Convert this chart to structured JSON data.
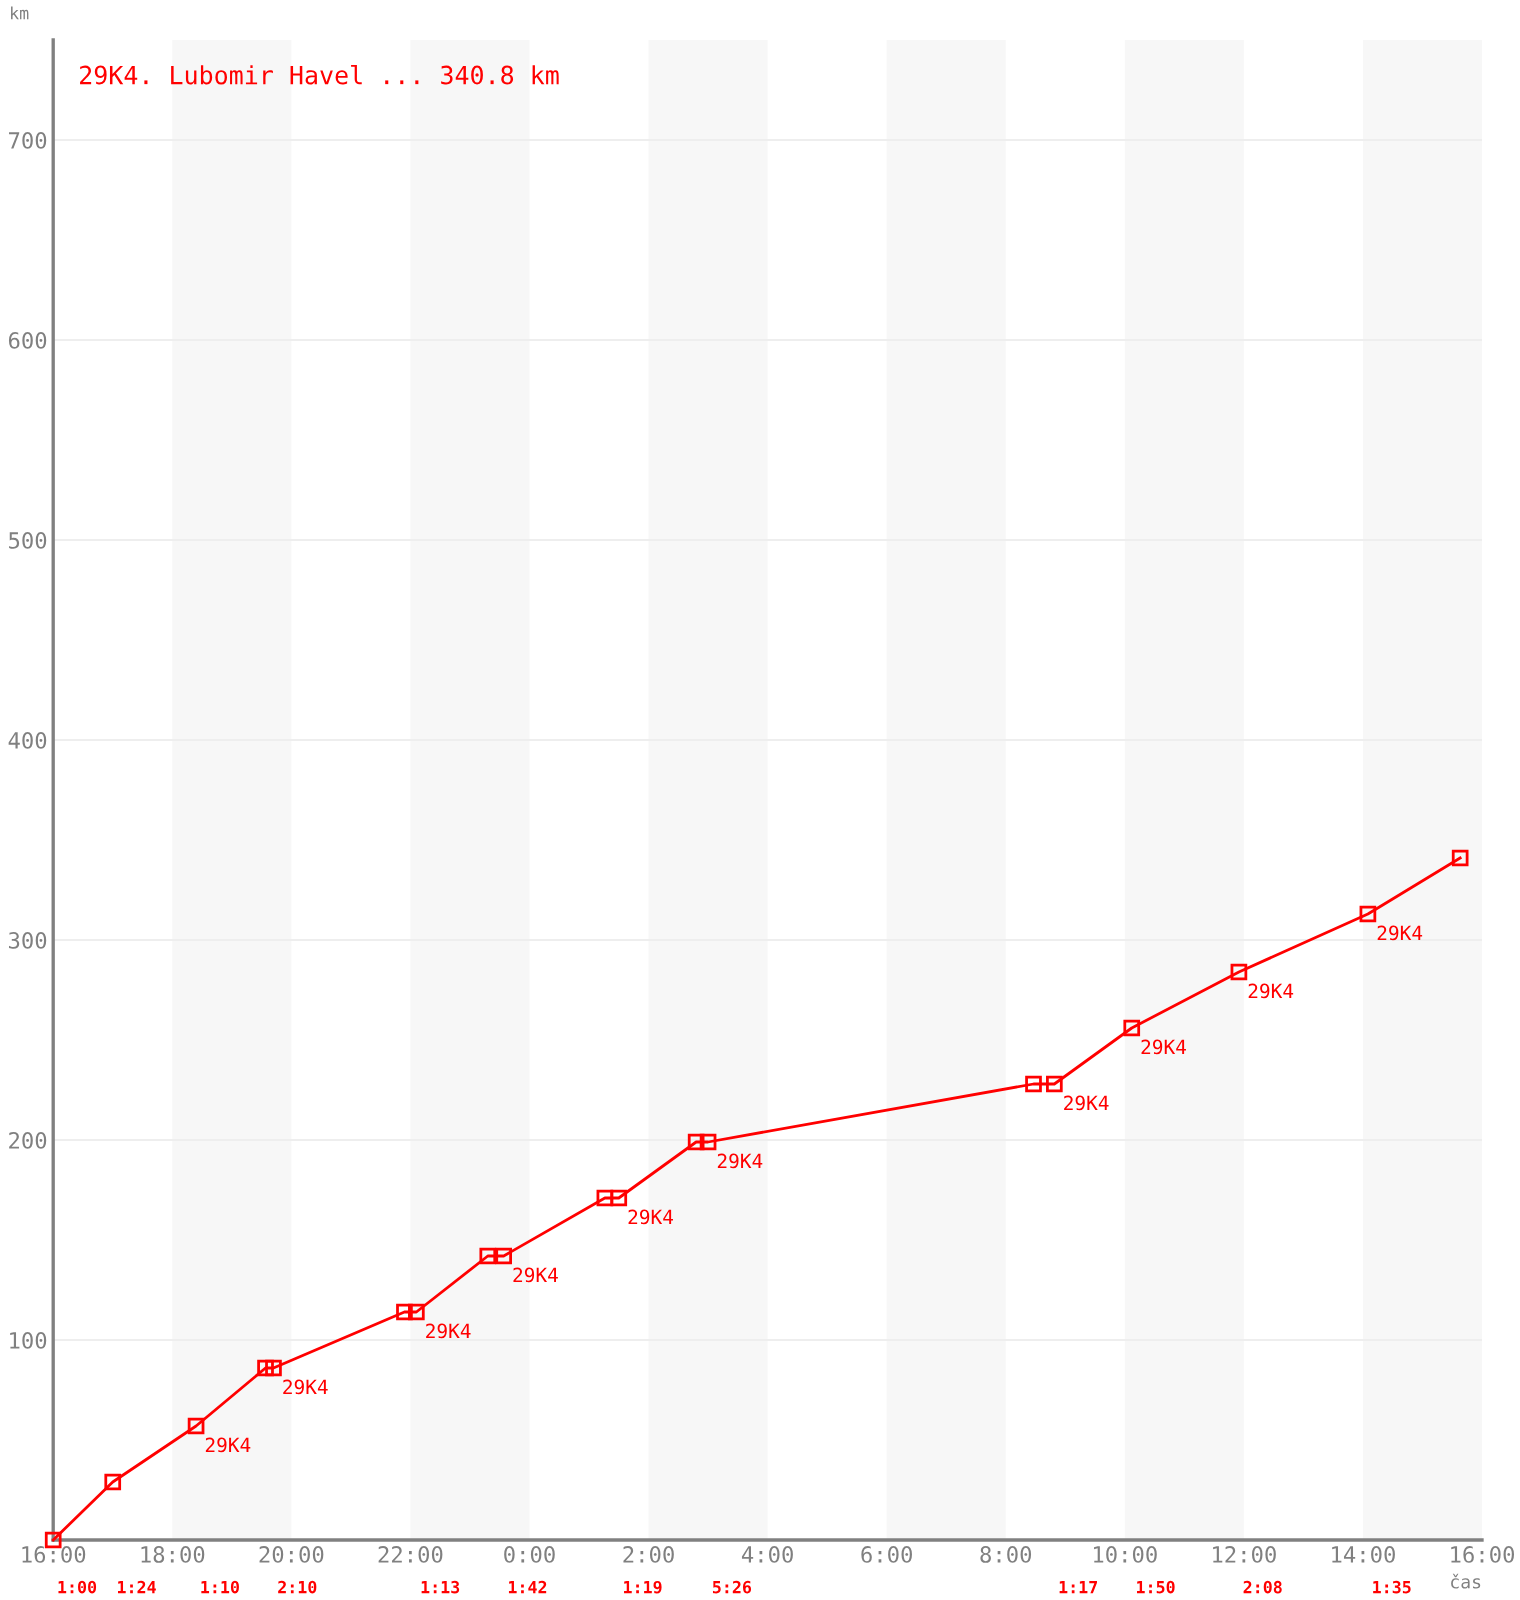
{
  "chart_data": {
    "type": "line",
    "xlabel": "čas",
    "ylabel": "km",
    "xlim": [
      "2000-01-01T16:00",
      "2000-01-02T16:00"
    ],
    "ylim": [
      0,
      750
    ],
    "xticks": [
      {
        "value": "2000-01-01T16:00",
        "label": "16:00"
      },
      {
        "value": "2000-01-01T18:00",
        "label": "18:00"
      },
      {
        "value": "2000-01-01T20:00",
        "label": "20:00"
      },
      {
        "value": "2000-01-01T22:00",
        "label": "22:00"
      },
      {
        "value": "2000-01-02T00:00",
        "label": "0:00"
      },
      {
        "value": "2000-01-02T02:00",
        "label": "2:00"
      },
      {
        "value": "2000-01-02T04:00",
        "label": "4:00"
      },
      {
        "value": "2000-01-02T06:00",
        "label": "6:00"
      },
      {
        "value": "2000-01-02T08:00",
        "label": "8:00"
      },
      {
        "value": "2000-01-02T10:00",
        "label": "10:00"
      },
      {
        "value": "2000-01-02T12:00",
        "label": "12:00"
      },
      {
        "value": "2000-01-02T14:00",
        "label": "14:00"
      },
      {
        "value": "2000-01-02T16:00",
        "label": "16:00"
      }
    ],
    "yticks": [
      100,
      200,
      300,
      400,
      500,
      600,
      700
    ],
    "grid": "y",
    "legend": "top left",
    "marker": "square",
    "line_style": "solid",
    "series": [
      {
        "name": "29K4. Lubomir Havel ... 340.8 km",
        "color": "#ff0000",
        "x": [
          "2000-01-01T16:00",
          "2000-01-01T17:00",
          "2000-01-01T18:24",
          "2000-01-01T19:34",
          "2000-01-01T19:42",
          "2000-01-01T21:54",
          "2000-01-01T22:06",
          "2000-01-01T23:18",
          "2000-01-01T23:34",
          "2000-01-02T01:16",
          "2000-01-02T01:30",
          "2000-01-02T02:48",
          "2000-01-02T03:00",
          "2000-01-02T08:28",
          "2000-01-02T08:49",
          "2000-01-02T10:07",
          "2000-01-02T11:55",
          "2000-01-02T14:05",
          "2000-01-02T15:38"
        ],
        "values": [
          0,
          29,
          57,
          86,
          86,
          114,
          114,
          142,
          142,
          171,
          171,
          199,
          199,
          228,
          228,
          256,
          284,
          313,
          341
        ]
      }
    ],
    "bands": [
      {
        "axis": "x",
        "from": "2000-01-01T18:00",
        "to": "2000-01-01T20:00",
        "color": "#f7f7f7"
      },
      {
        "axis": "x",
        "from": "2000-01-01T22:00",
        "to": "2000-01-02T00:00",
        "color": "#f7f7f7"
      },
      {
        "axis": "x",
        "from": "2000-01-02T02:00",
        "to": "2000-01-02T04:00",
        "color": "#f7f7f7"
      },
      {
        "axis": "x",
        "from": "2000-01-02T06:00",
        "to": "2000-01-02T08:00",
        "color": "#f7f7f7"
      },
      {
        "axis": "x",
        "from": "2000-01-02T10:00",
        "to": "2000-01-02T12:00",
        "color": "#f7f7f7"
      },
      {
        "axis": "x",
        "from": "2000-01-02T14:00",
        "to": "2000-01-02T16:00",
        "color": "#f7f7f7"
      }
    ],
    "annotations": [
      {
        "text": "29K4",
        "x": "2000-01-01T18:24",
        "y": 57
      },
      {
        "text": "29K4",
        "x": "2000-01-01T19:42",
        "y": 86
      },
      {
        "text": "29K4",
        "x": "2000-01-01T22:06",
        "y": 114
      },
      {
        "text": "29K4",
        "x": "2000-01-01T23:34",
        "y": 142
      },
      {
        "text": "29K4",
        "x": "2000-01-02T01:30",
        "y": 171
      },
      {
        "text": "29K4",
        "x": "2000-01-02T03:00",
        "y": 199
      },
      {
        "text": "29K4",
        "x": "2000-01-02T08:49",
        "y": 228
      },
      {
        "text": "29K4",
        "x": "2000-01-02T10:07",
        "y": 256
      },
      {
        "text": "29K4",
        "x": "2000-01-02T11:55",
        "y": 284
      },
      {
        "text": "29K4",
        "x": "2000-01-02T14:05",
        "y": 313
      },
      "1:00",
      "1:24",
      "1:10",
      "2:10",
      "1:13",
      "1:42",
      "1:19",
      "5:26",
      "1:17",
      "1:50",
      "2:08",
      "1:35"
    ]
  }
}
